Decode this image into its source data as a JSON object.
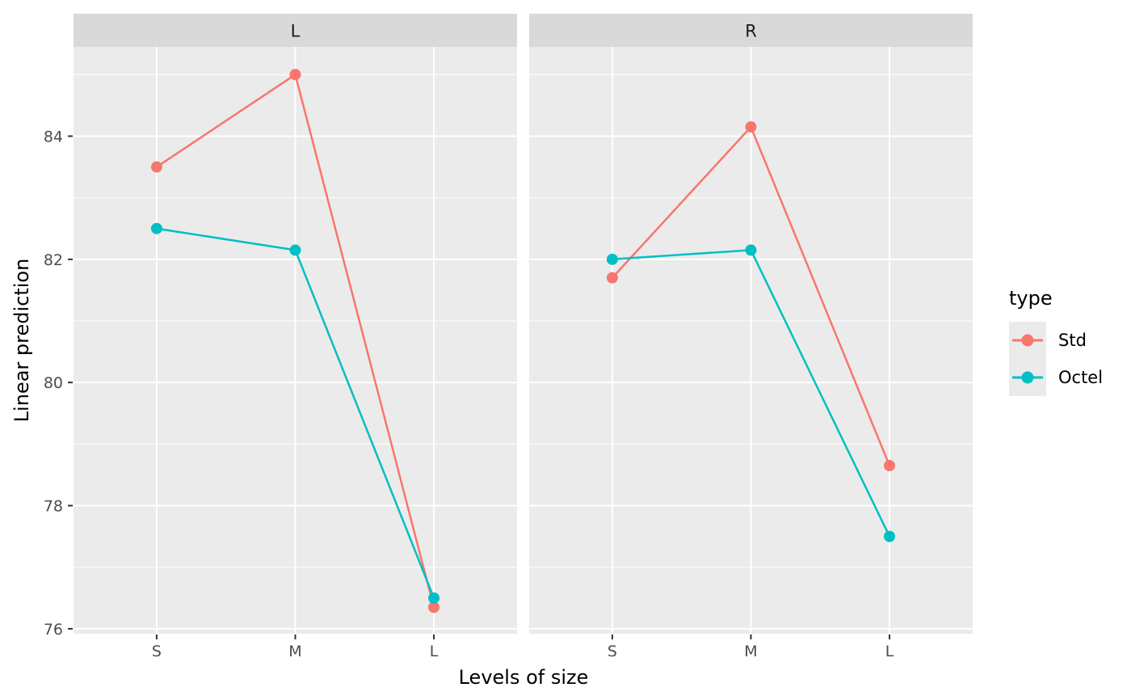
{
  "figure": {
    "background": "#FFFFFF",
    "panel_bg": "#EBEBEB",
    "strip_bg": "#D9D9D9",
    "grid_color": "#FFFFFF",
    "tick_color": "#333333",
    "tick_label_color": "#4D4D4D",
    "strip_label_color": "#1A1A1A",
    "axis_title_color": "#000000"
  },
  "chart_data": {
    "type": "line",
    "title": "",
    "xlabel": "Levels of size",
    "ylabel": "Linear prediction",
    "categories": [
      "S",
      "M",
      "L"
    ],
    "y_ticks": [
      84,
      82,
      80,
      78,
      76
    ],
    "y_minor_ticks": [
      85,
      83,
      81,
      79,
      77
    ],
    "ylim": [
      75.92,
      85.45
    ],
    "grid": "white major and minor on grey panels",
    "legend_position": "right",
    "facets": [
      {
        "label": "L",
        "series": [
          {
            "name": "Std",
            "color": "#F8766D",
            "values": [
              83.5,
              85.0,
              76.35
            ]
          },
          {
            "name": "Octel",
            "color": "#00BFC4",
            "values": [
              82.5,
              82.15,
              76.5
            ]
          }
        ]
      },
      {
        "label": "R",
        "series": [
          {
            "name": "Std",
            "color": "#F8766D",
            "values": [
              81.7,
              84.15,
              78.65
            ]
          },
          {
            "name": "Octel",
            "color": "#00BFC4",
            "values": [
              82.0,
              82.15,
              77.5
            ]
          }
        ]
      }
    ],
    "legend": {
      "title": "type",
      "entries": [
        {
          "label": "Std",
          "color": "#F8766D"
        },
        {
          "label": "Octel",
          "color": "#00BFC4"
        }
      ]
    }
  }
}
